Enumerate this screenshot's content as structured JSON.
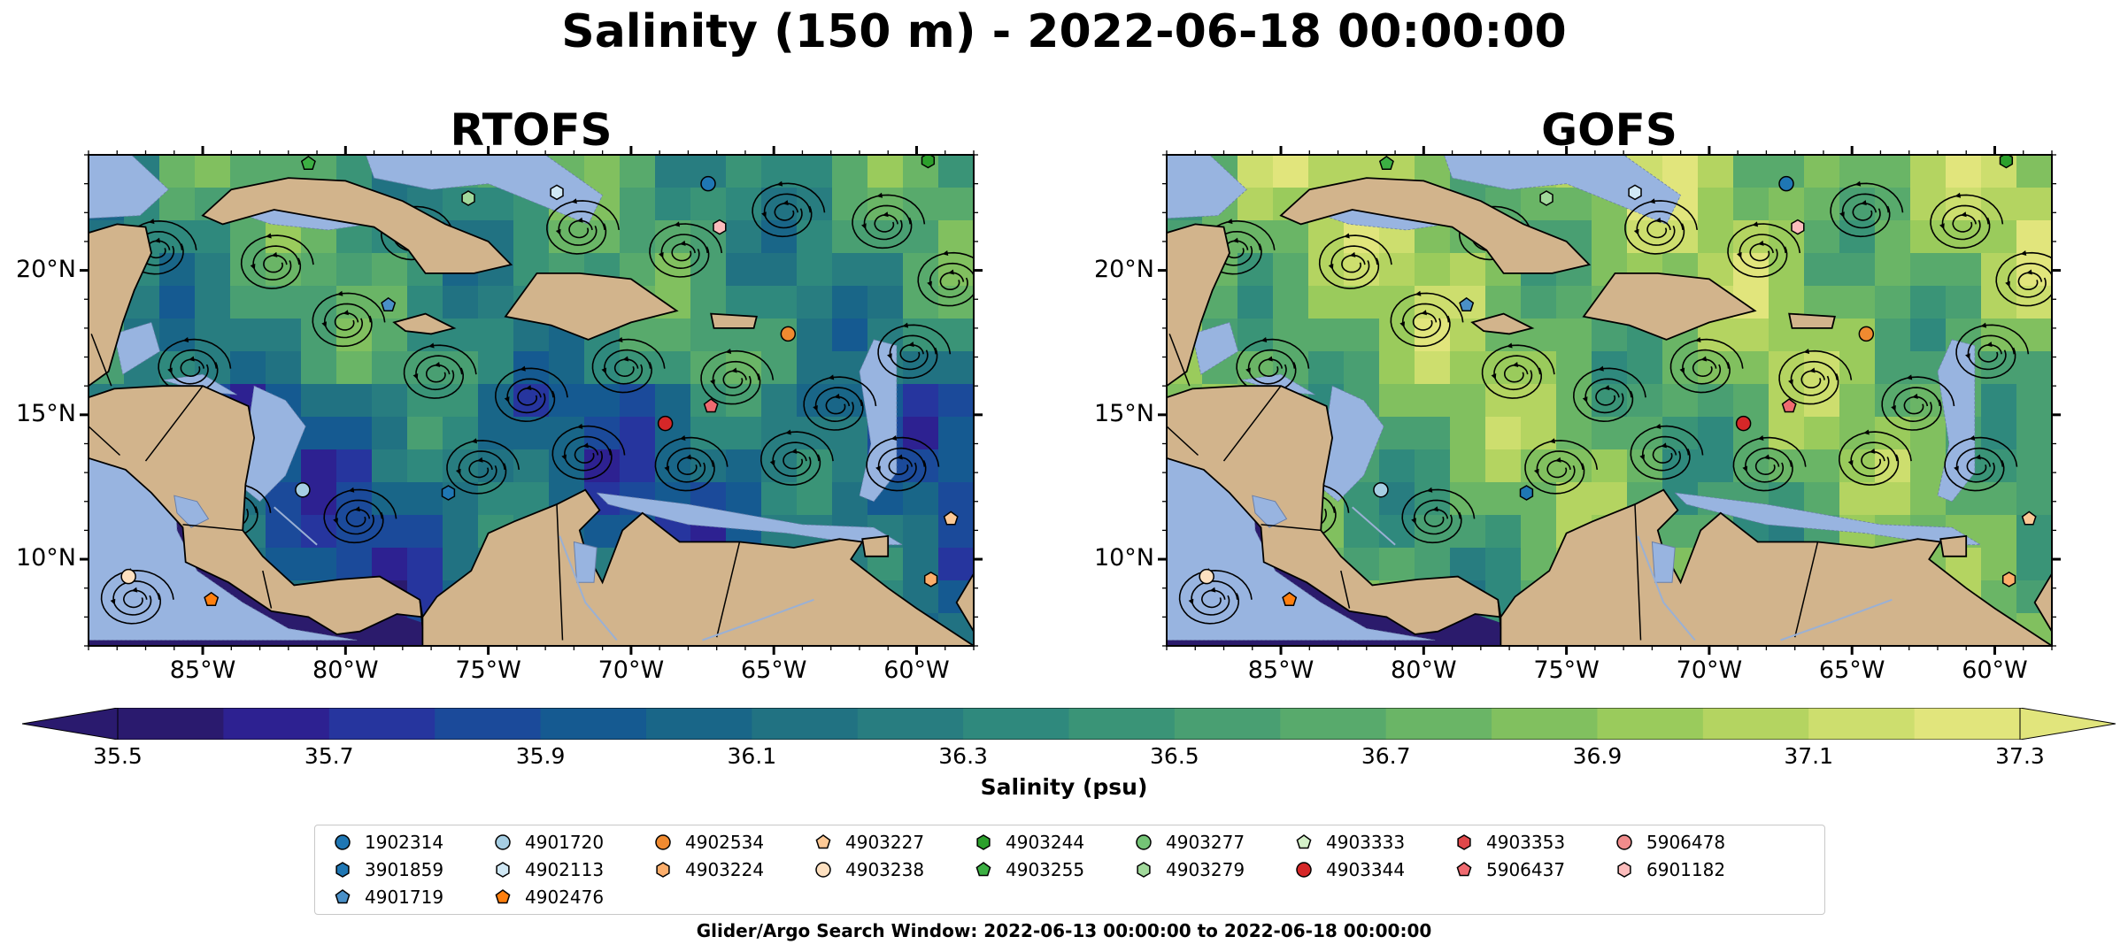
{
  "figure": {
    "title": "Salinity (150 m) - 2022-06-18 00:00:00",
    "footer": "Glider/Argo Search Window: 2022-06-13 00:00:00 to 2022-06-18 00:00:00"
  },
  "panels": [
    {
      "title": "RTOFS",
      "field_mean": 36.35
    },
    {
      "title": "GOFS",
      "field_mean": 36.75
    }
  ],
  "map": {
    "lon_range": [
      -89,
      -58
    ],
    "lat_range": [
      7,
      24
    ],
    "lat_ticks": [
      "20°N",
      "15°N",
      "10°N"
    ],
    "lon_ticks": [
      "85°W",
      "80°W",
      "75°W",
      "70°W",
      "65°W",
      "60°W"
    ],
    "land_color": "#d2b48c",
    "shelf_color": "#98b4e0",
    "pacific_color": "#2b1b6c"
  },
  "colorbar": {
    "label": "Salinity (psu)",
    "range": [
      35.5,
      37.3
    ],
    "ticks": [
      "35.5",
      "35.7",
      "35.9",
      "36.1",
      "36.3",
      "36.5",
      "36.7",
      "36.9",
      "37.1",
      "37.3"
    ],
    "colors": [
      "#2a1a6e",
      "#2d2191",
      "#26359e",
      "#1b4a9a",
      "#155a91",
      "#196688",
      "#217282",
      "#287d80",
      "#2f897d",
      "#3a9477",
      "#499f72",
      "#58aa6c",
      "#6ab566",
      "#81c05f",
      "#9acb5c",
      "#b4d461",
      "#cdde6e",
      "#e1e57c"
    ]
  },
  "legend": {
    "items": [
      {
        "id": "1902314",
        "color": "#1f77b4",
        "marker": "circle"
      },
      {
        "id": "3901859",
        "color": "#1f77b4",
        "marker": "hexagon"
      },
      {
        "id": "4901719",
        "color": "#4a90c8",
        "marker": "pentagon"
      },
      {
        "id": "4901720",
        "color": "#a6cee3",
        "marker": "circle"
      },
      {
        "id": "4902113",
        "color": "#d0e8f5",
        "marker": "hexagon"
      },
      {
        "id": "4902476",
        "color": "#ff7f0e",
        "marker": "pentagon"
      },
      {
        "id": "4902534",
        "color": "#f08a30",
        "marker": "circle"
      },
      {
        "id": "4903224",
        "color": "#fdae6b",
        "marker": "hexagon"
      },
      {
        "id": "4903227",
        "color": "#fdc996",
        "marker": "pentagon"
      },
      {
        "id": "4903238",
        "color": "#fde0c0",
        "marker": "circle"
      },
      {
        "id": "4903244",
        "color": "#2ca02c",
        "marker": "hexagon"
      },
      {
        "id": "4903255",
        "color": "#3cb043",
        "marker": "pentagon"
      },
      {
        "id": "4903277",
        "color": "#74c476",
        "marker": "circle"
      },
      {
        "id": "4903279",
        "color": "#a1d99b",
        "marker": "hexagon"
      },
      {
        "id": "4903333",
        "color": "#d4f0c8",
        "marker": "pentagon"
      },
      {
        "id": "4903344",
        "color": "#d62728",
        "marker": "circle"
      },
      {
        "id": "4903353",
        "color": "#e0474a",
        "marker": "hexagon"
      },
      {
        "id": "5906437",
        "color": "#f06a70",
        "marker": "pentagon"
      },
      {
        "id": "5906478",
        "color": "#f08c8c",
        "marker": "circle"
      },
      {
        "id": "6901182",
        "color": "#fcbcbc",
        "marker": "hexagon"
      }
    ]
  },
  "floats": [
    {
      "id": "1902314",
      "lon": -67.3,
      "lat": 23.0
    },
    {
      "id": "3901859",
      "lon": -76.4,
      "lat": 12.3
    },
    {
      "id": "4901719",
      "lon": -78.5,
      "lat": 18.8
    },
    {
      "id": "4901720",
      "lon": -81.5,
      "lat": 12.4
    },
    {
      "id": "4902113",
      "lon": -72.6,
      "lat": 22.7
    },
    {
      "id": "4902476",
      "lon": -84.7,
      "lat": 8.6
    },
    {
      "id": "4902534",
      "lon": -64.5,
      "lat": 17.8
    },
    {
      "id": "4903224",
      "lon": -59.5,
      "lat": 9.3
    },
    {
      "id": "4903227",
      "lon": -58.8,
      "lat": 11.4
    },
    {
      "id": "4903238",
      "lon": -87.6,
      "lat": 9.4
    },
    {
      "id": "4903244",
      "lon": -59.6,
      "lat": 23.8
    },
    {
      "id": "4903255",
      "lon": -81.3,
      "lat": 23.7
    },
    {
      "id": "4903279",
      "lon": -75.7,
      "lat": 22.5
    },
    {
      "id": "4903344",
      "lon": -68.8,
      "lat": 14.7
    },
    {
      "id": "5906437",
      "lon": -67.2,
      "lat": 15.3
    },
    {
      "id": "6901182",
      "lon": -66.9,
      "lat": 21.5
    }
  ]
}
